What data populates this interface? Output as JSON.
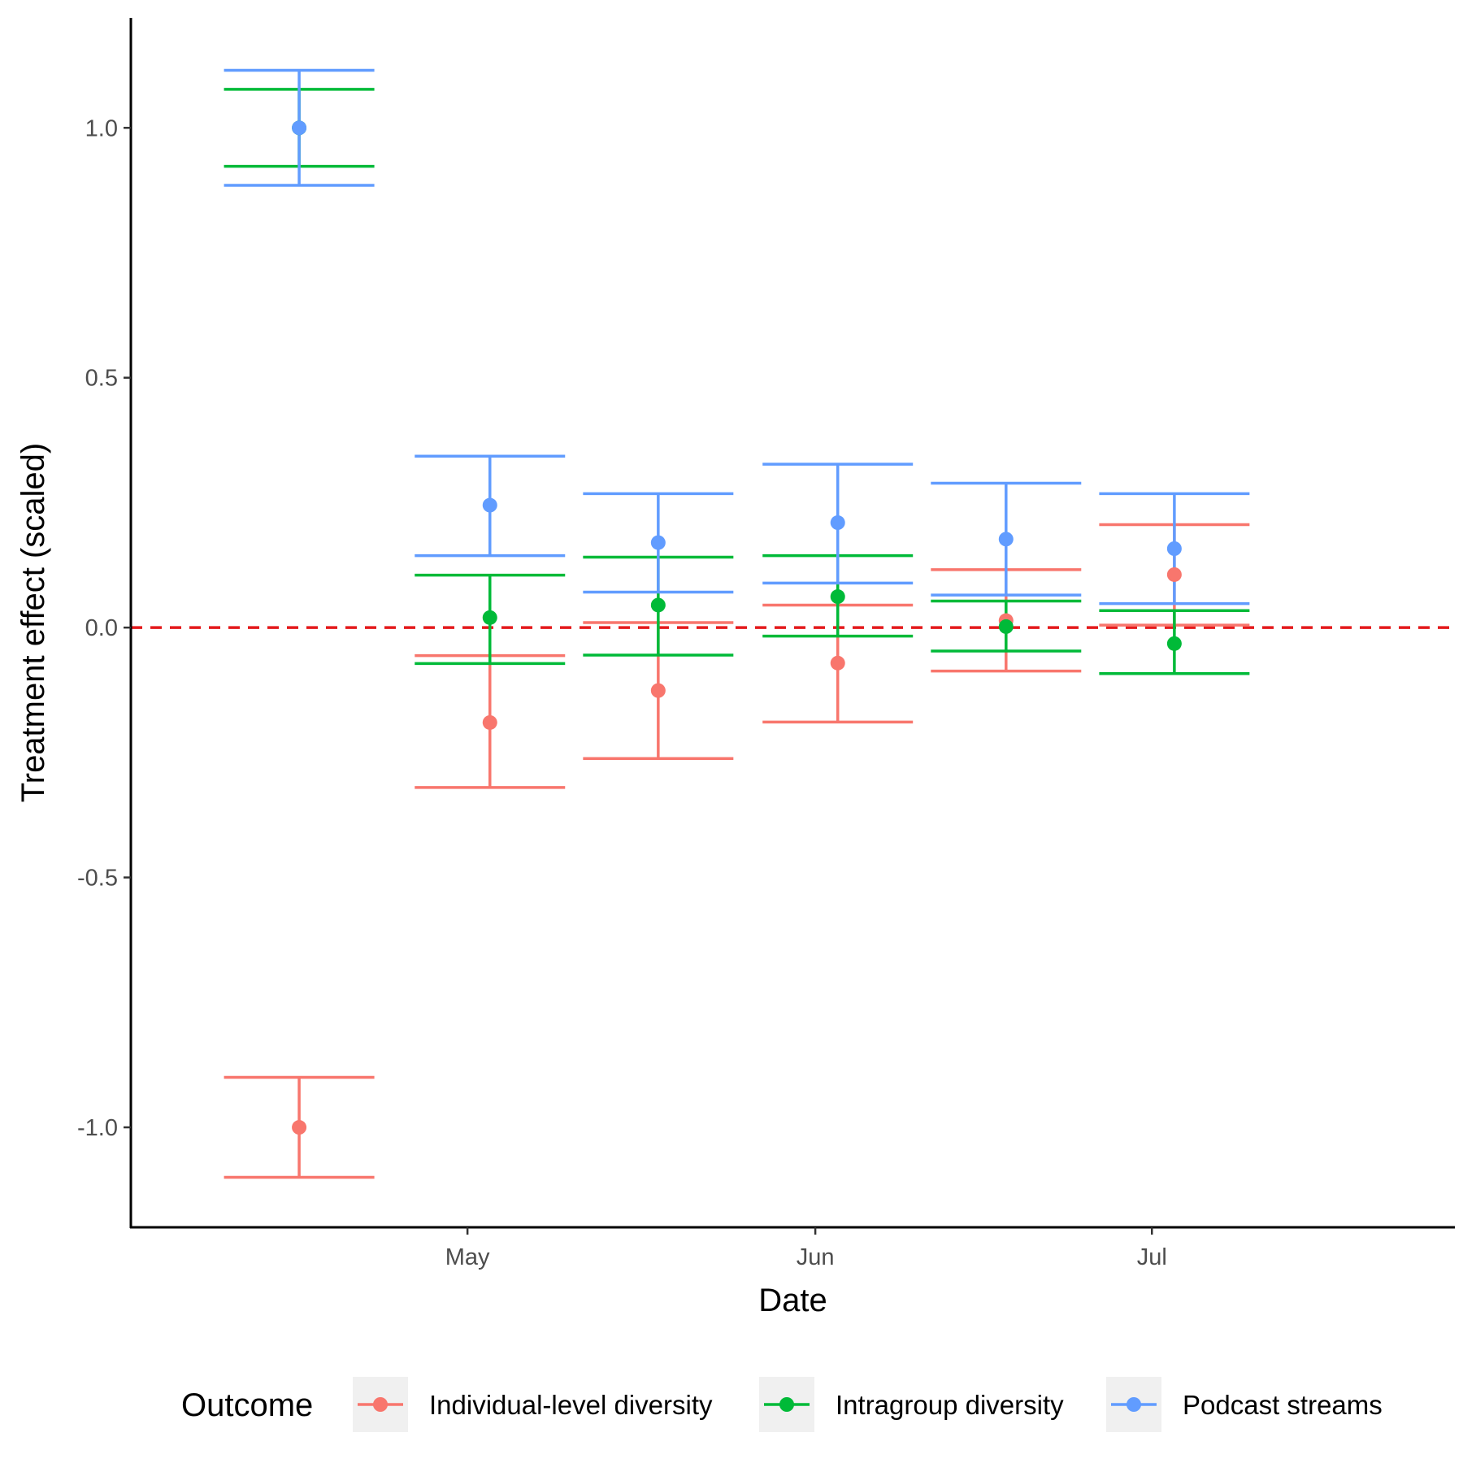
{
  "chart_data": {
    "type": "scatter",
    "subtype": "point-errorbar",
    "title": "",
    "xlabel": "Date",
    "ylabel": "Treatment effect (scaled)",
    "ylim": [
      -1.2,
      1.22
    ],
    "xlim": [
      "2023-04-01",
      "2023-07-28"
    ],
    "x_ticks": [
      {
        "date": "2023-05-01",
        "label": "May"
      },
      {
        "date": "2023-06-01",
        "label": "Jun"
      },
      {
        "date": "2023-07-01",
        "label": "Jul"
      }
    ],
    "y_ticks": [
      {
        "value": 1.0,
        "label": "1.0"
      },
      {
        "value": 0.5,
        "label": "0.5"
      },
      {
        "value": 0.0,
        "label": "0.0"
      },
      {
        "value": -0.5,
        "label": "-0.5"
      },
      {
        "value": -1.0,
        "label": "-1.0"
      }
    ],
    "errorbar_halfwidth_days": 6.7,
    "reference_line": {
      "y": 0,
      "style": "dashed",
      "color": "#e41a1c"
    },
    "grid": false,
    "legend": {
      "title": "Outcome",
      "position": "bottom"
    },
    "series": [
      {
        "name": "Individual-level diversity",
        "color": "#f8766d",
        "points": [
          {
            "x": "2023-04-16",
            "y": -1.0,
            "lower": -1.1,
            "upper": -0.9
          },
          {
            "x": "2023-05-03",
            "y": -0.19,
            "lower": -0.32,
            "upper": -0.056
          },
          {
            "x": "2023-05-18",
            "y": -0.126,
            "lower": -0.262,
            "upper": 0.01
          },
          {
            "x": "2023-06-03",
            "y": -0.071,
            "lower": -0.189,
            "upper": 0.045
          },
          {
            "x": "2023-06-18",
            "y": 0.014,
            "lower": -0.087,
            "upper": 0.116
          },
          {
            "x": "2023-07-03",
            "y": 0.106,
            "lower": 0.005,
            "upper": 0.206
          }
        ]
      },
      {
        "name": "Intragroup diversity",
        "color": "#00ba38",
        "points": [
          {
            "x": "2023-04-16",
            "y": 1.0,
            "lower": 0.923,
            "upper": 1.077
          },
          {
            "x": "2023-05-03",
            "y": 0.02,
            "lower": -0.072,
            "upper": 0.105
          },
          {
            "x": "2023-05-18",
            "y": 0.045,
            "lower": -0.055,
            "upper": 0.141
          },
          {
            "x": "2023-06-03",
            "y": 0.062,
            "lower": -0.017,
            "upper": 0.144
          },
          {
            "x": "2023-06-18",
            "y": 0.002,
            "lower": -0.047,
            "upper": 0.053
          },
          {
            "x": "2023-07-03",
            "y": -0.032,
            "lower": -0.092,
            "upper": 0.034
          }
        ]
      },
      {
        "name": "Podcast streams",
        "color": "#619cff",
        "points": [
          {
            "x": "2023-04-16",
            "y": 1.0,
            "lower": 0.885,
            "upper": 1.115
          },
          {
            "x": "2023-05-03",
            "y": 0.245,
            "lower": 0.144,
            "upper": 0.343
          },
          {
            "x": "2023-05-18",
            "y": 0.17,
            "lower": 0.071,
            "upper": 0.268
          },
          {
            "x": "2023-06-03",
            "y": 0.21,
            "lower": 0.089,
            "upper": 0.327
          },
          {
            "x": "2023-06-18",
            "y": 0.177,
            "lower": 0.065,
            "upper": 0.289
          },
          {
            "x": "2023-07-03",
            "y": 0.158,
            "lower": 0.048,
            "upper": 0.268
          }
        ]
      }
    ]
  }
}
